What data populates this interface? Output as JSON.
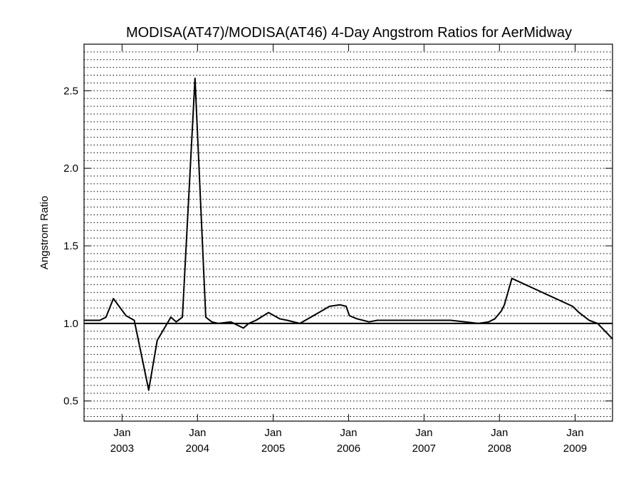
{
  "chart_data": {
    "type": "line",
    "title": "MODISA(AT47)/MODISA(AT46) 4-Day Angstrom Ratios for AerMidway",
    "xlabel": "",
    "ylabel": "Angstrom Ratio",
    "xlim": [
      "2002-07-01",
      "2009-07-01"
    ],
    "ylim": [
      0.37,
      2.8
    ],
    "grid": true,
    "x_ticks": [
      {
        "date": "2003-01-01",
        "month": "Jan",
        "year": "2003"
      },
      {
        "date": "2004-01-01",
        "month": "Jan",
        "year": "2004"
      },
      {
        "date": "2005-01-01",
        "month": "Jan",
        "year": "2005"
      },
      {
        "date": "2006-01-01",
        "month": "Jan",
        "year": "2006"
      },
      {
        "date": "2007-01-01",
        "month": "Jan",
        "year": "2007"
      },
      {
        "date": "2008-01-01",
        "month": "Jan",
        "year": "2008"
      },
      {
        "date": "2009-01-01",
        "month": "Jan",
        "year": "2009"
      }
    ],
    "y_ticks": [
      {
        "value": 0.5,
        "label": "0.5"
      },
      {
        "value": 1.0,
        "label": "1.0"
      },
      {
        "value": 1.5,
        "label": "1.5"
      },
      {
        "value": 2.0,
        "label": "2.0"
      },
      {
        "value": 2.5,
        "label": "2.5"
      }
    ],
    "reference_line": 1.0,
    "series": [
      {
        "x": [
          "2002-07-01",
          "2002-09-15",
          "2002-10-15",
          "2002-11-20",
          "2003-01-20",
          "2003-03-01",
          "2003-05-10",
          "2003-06-20",
          "2003-08-25",
          "2003-09-20",
          "2003-10-20",
          "2003-12-20",
          "2004-02-10",
          "2004-03-10",
          "2004-04-10",
          "2004-06-10",
          "2004-08-10",
          "2004-09-05",
          "2004-10-10",
          "2004-12-10",
          "2005-02-01",
          "2005-03-10",
          "2005-05-10",
          "2005-07-15",
          "2005-10-01",
          "2005-11-20",
          "2005-12-20",
          "2006-01-05",
          "2006-02-10",
          "2006-04-10",
          "2006-05-20",
          "2006-08-10",
          "2006-11-10",
          "2007-02-10",
          "2007-05-10",
          "2007-07-20",
          "2007-09-20",
          "2007-11-10",
          "2007-12-10",
          "2008-01-10",
          "2008-01-25",
          "2008-03-01",
          "2008-12-20",
          "2009-01-20",
          "2009-03-10",
          "2009-04-20",
          "2009-07-01"
        ],
        "y": [
          1.02,
          1.02,
          1.04,
          1.16,
          1.05,
          1.02,
          0.57,
          0.89,
          1.04,
          1.01,
          1.04,
          2.58,
          1.04,
          1.01,
          1.0,
          1.01,
          0.97,
          1.0,
          1.02,
          1.07,
          1.03,
          1.02,
          1.0,
          1.05,
          1.11,
          1.12,
          1.11,
          1.05,
          1.03,
          1.01,
          1.02,
          1.02,
          1.02,
          1.02,
          1.02,
          1.01,
          1.0,
          1.01,
          1.03,
          1.08,
          1.12,
          1.29,
          1.11,
          1.07,
          1.02,
          1.0,
          0.9
        ]
      }
    ]
  }
}
